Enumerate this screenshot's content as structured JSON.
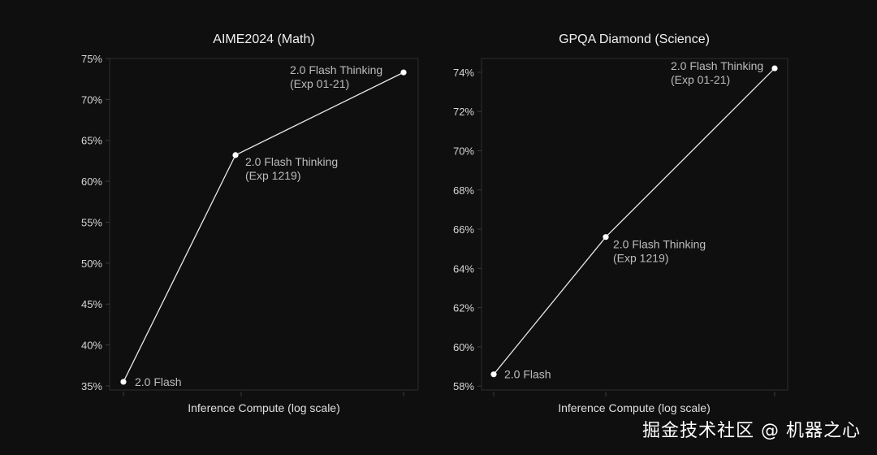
{
  "chart_data": [
    {
      "type": "line",
      "title": "AIME2024 (Math)",
      "xlabel": "Inference Compute (log scale)",
      "ylabel": "",
      "ylim": [
        34.5,
        75
      ],
      "yticks": [
        35,
        40,
        45,
        50,
        55,
        60,
        65,
        70,
        75
      ],
      "ytick_labels": [
        "35%",
        "40%",
        "45%",
        "50%",
        "55%",
        "60%",
        "65%",
        "70%",
        "75%"
      ],
      "xscale": "log",
      "grid": false,
      "points": [
        {
          "label": [
            "2.0 Flash"
          ],
          "y": 35.5
        },
        {
          "label": [
            "2.0 Flash Thinking",
            "(Exp 1219)"
          ],
          "y": 63.2
        },
        {
          "label": [
            "2.0 Flash Thinking",
            "(Exp 01-21)"
          ],
          "y": 73.3
        }
      ]
    },
    {
      "type": "line",
      "title": "GPQA Diamond (Science)",
      "xlabel": "Inference Compute (log scale)",
      "ylabel": "",
      "ylim": [
        57.8,
        74.7
      ],
      "yticks": [
        58,
        60,
        62,
        64,
        66,
        68,
        70,
        72,
        74
      ],
      "ytick_labels": [
        "58%",
        "60%",
        "62%",
        "64%",
        "66%",
        "68%",
        "70%",
        "72%",
        "74%"
      ],
      "xscale": "log",
      "grid": false,
      "points": [
        {
          "label": [
            "2.0 Flash"
          ],
          "y": 58.6
        },
        {
          "label": [
            "2.0 Flash Thinking",
            "(Exp 1219)"
          ],
          "y": 65.6
        },
        {
          "label": [
            "2.0 Flash Thinking",
            "(Exp 01-21)"
          ],
          "y": 74.2
        }
      ]
    }
  ],
  "watermark": "掘金技术社区 @ 机器之心"
}
